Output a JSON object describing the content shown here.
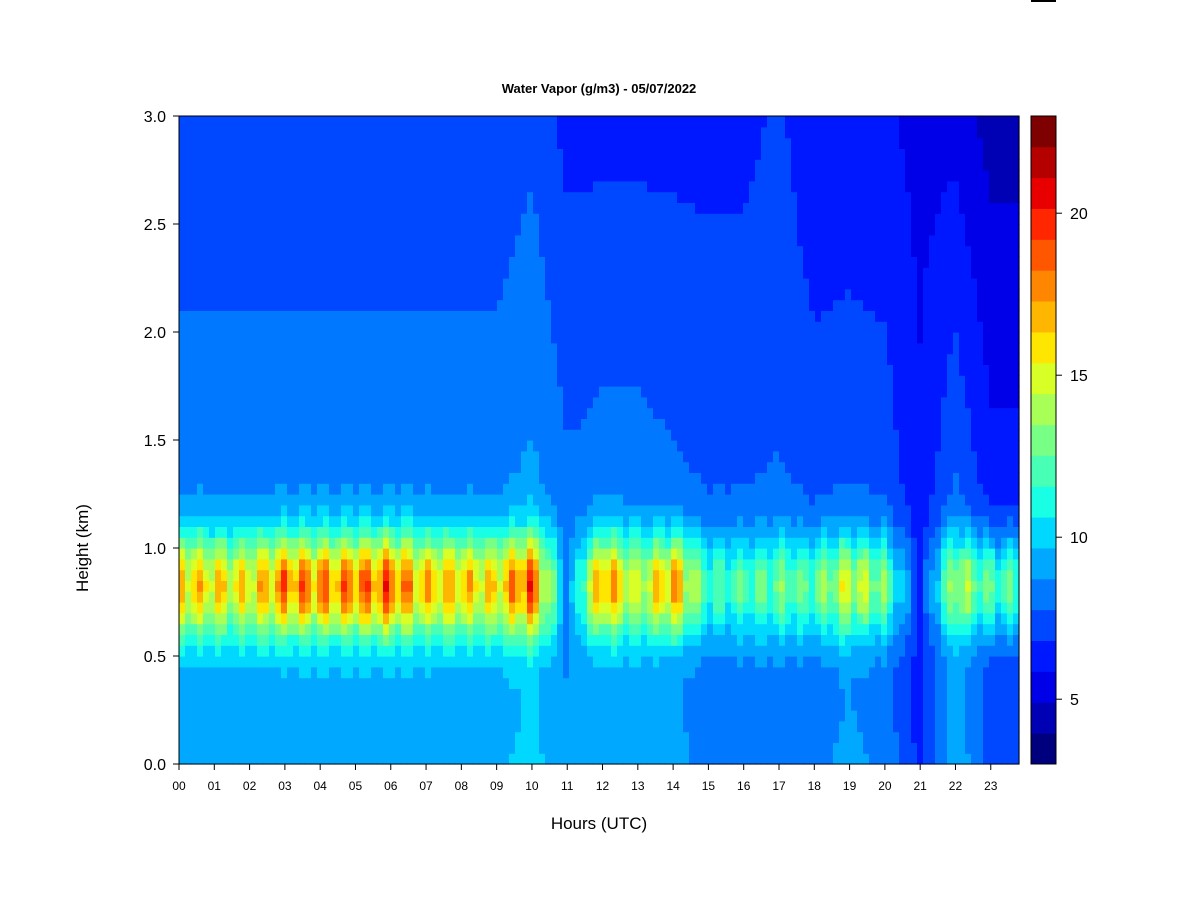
{
  "chart_data": {
    "type": "heatmap",
    "title": "Water Vapor (g/m3) - 05/07/2022",
    "xlabel": "Hours (UTC)",
    "ylabel": "Height (km)",
    "x_range": [
      0,
      23.8
    ],
    "y_range": [
      0.0,
      3.0
    ],
    "x_ticks": [
      0,
      1,
      2,
      3,
      4,
      5,
      6,
      7,
      8,
      9,
      10,
      11,
      12,
      13,
      14,
      15,
      16,
      17,
      18,
      19,
      20,
      21,
      22,
      23
    ],
    "x_tick_labels": [
      "00",
      "01",
      "02",
      "03",
      "04",
      "05",
      "06",
      "07",
      "08",
      "09",
      "10",
      "11",
      "12",
      "13",
      "14",
      "15",
      "16",
      "17",
      "18",
      "19",
      "20",
      "21",
      "22",
      "23"
    ],
    "y_ticks": [
      0.0,
      0.5,
      1.0,
      1.5,
      2.0,
      2.5,
      3.0
    ],
    "y_tick_labels": [
      "0.0",
      "0.5",
      "1.0",
      "1.5",
      "2.0",
      "2.5",
      "3.0"
    ],
    "colorbar": {
      "range": [
        3,
        23
      ],
      "ticks": [
        5,
        10,
        15,
        20
      ],
      "tick_labels": [
        "5",
        "10",
        "15",
        "20"
      ],
      "colors": [
        "#00007f",
        "#0000b5",
        "#0000e8",
        "#0018ff",
        "#0048ff",
        "#0078ff",
        "#00a8ff",
        "#00d8ff",
        "#18ffe6",
        "#48ffb6",
        "#78ff86",
        "#a8ff56",
        "#d8ff26",
        "#ffe600",
        "#ffb600",
        "#ff8600",
        "#ff5600",
        "#ff2600",
        "#e80000",
        "#b50000",
        "#7f0000"
      ]
    },
    "hourly_profile": {
      "hours": [
        0,
        1,
        2,
        3,
        4,
        5,
        6,
        7,
        8,
        9,
        10,
        11,
        12,
        13,
        14,
        15,
        16,
        17,
        18,
        19,
        20,
        21,
        22,
        23
      ],
      "peak_height_km": [
        0.83,
        0.83,
        0.83,
        0.83,
        0.83,
        0.83,
        0.83,
        0.83,
        0.83,
        0.83,
        0.83,
        0.83,
        0.83,
        0.83,
        0.83,
        0.83,
        0.83,
        0.83,
        0.83,
        0.83,
        0.83,
        0.83,
        0.83,
        0.83
      ],
      "peak_value_gm3": [
        18.5,
        18,
        17.5,
        20.5,
        20,
        20.5,
        21,
        18.5,
        18.5,
        18,
        21.5,
        9,
        20,
        16,
        19.5,
        13,
        13.5,
        14,
        14,
        17,
        14.5,
        7,
        16.5,
        14
      ],
      "surface_value_gm3": [
        9.5,
        9.5,
        9.5,
        9.5,
        9.5,
        9.5,
        9.5,
        9.5,
        9.5,
        9.5,
        10,
        9,
        9.5,
        9.5,
        9,
        8.5,
        8.5,
        8.5,
        8.5,
        9,
        8.5,
        6.5,
        9.5,
        7.5
      ],
      "top_value_gm3": [
        7,
        7,
        7,
        7,
        7,
        7,
        7,
        7,
        7,
        7,
        7.5,
        6.5,
        6.5,
        6.5,
        6.5,
        6.5,
        6.5,
        7,
        6,
        6,
        6,
        5.5,
        5.5,
        4.5
      ]
    },
    "grid": false,
    "legend": "colorbar-right"
  }
}
